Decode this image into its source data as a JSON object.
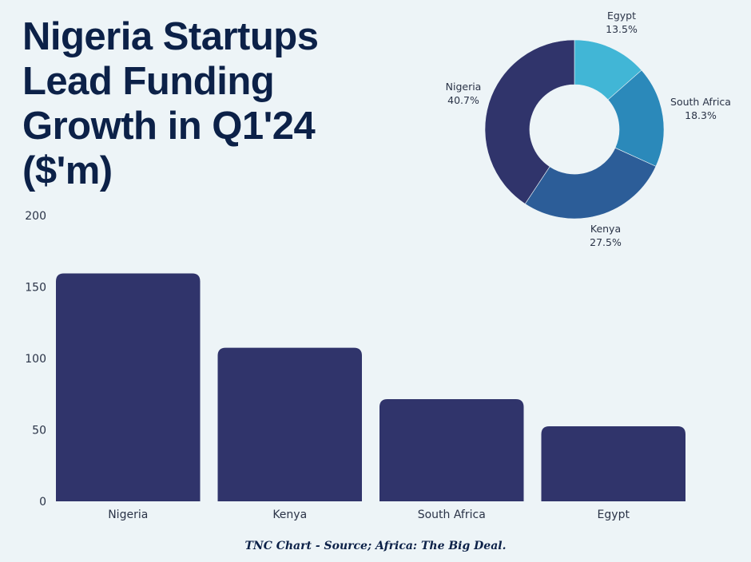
{
  "title_lines": [
    "Nigeria Startups",
    "Lead Funding",
    "Growth in Q1'24",
    "($'m)"
  ],
  "source": "TNC Chart - Source; Africa: The Big Deal.",
  "colors": {
    "background": "#edf4f7",
    "title": "#0c2148",
    "bar": "#30346b",
    "pie": [
      "#30346b",
      "#2c5d98",
      "#2b89ba",
      "#41b6d6"
    ]
  },
  "chart_data": [
    {
      "type": "bar",
      "title": "Nigeria Startups Lead Funding Growth in Q1'24 ($'m)",
      "xlabel": "",
      "ylabel": "",
      "categories": [
        "Nigeria",
        "Kenya",
        "South Africa",
        "Egypt"
      ],
      "values": [
        159.5,
        107.5,
        71.5,
        52.5
      ],
      "ylim": [
        0,
        200
      ],
      "yticks": [
        0,
        50,
        100,
        150,
        200
      ],
      "ytick_labels": [
        "0",
        "50",
        "100",
        "150",
        "200"
      ],
      "grid": false
    },
    {
      "type": "pie",
      "donut": true,
      "labels": [
        "Egypt",
        "South Africa",
        "Kenya",
        "Nigeria"
      ],
      "values": [
        13.5,
        18.3,
        27.5,
        40.7
      ],
      "value_labels": [
        "13.5%",
        "18.3%",
        "27.5%",
        "40.7%"
      ],
      "legend": "none"
    }
  ]
}
